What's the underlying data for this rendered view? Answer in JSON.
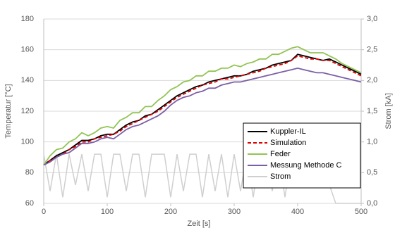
{
  "chart_data": {
    "type": "line",
    "x": [
      0,
      10,
      20,
      30,
      40,
      50,
      60,
      70,
      80,
      90,
      100,
      110,
      120,
      130,
      140,
      150,
      160,
      170,
      180,
      190,
      200,
      210,
      220,
      230,
      240,
      250,
      260,
      270,
      280,
      290,
      300,
      310,
      320,
      330,
      340,
      350,
      360,
      370,
      380,
      390,
      400,
      410,
      420,
      430,
      440,
      450,
      460,
      470,
      480,
      490,
      500
    ],
    "xlabel": "Zeit [s]",
    "ylabel": "Temperatur [°C]",
    "y2label": "Strom [kA]",
    "xlim": [
      0,
      500
    ],
    "xticks": [
      0,
      100,
      200,
      300,
      400,
      500
    ],
    "ylim": [
      60,
      180
    ],
    "yticks": [
      60,
      80,
      100,
      120,
      140,
      160,
      180
    ],
    "y2lim": [
      0,
      3
    ],
    "y2ticks": [
      {
        "value": 0,
        "label": "0,0"
      },
      {
        "value": 0.5,
        "label": "0,5"
      },
      {
        "value": 1,
        "label": "1,0"
      },
      {
        "value": 1.5,
        "label": "1,5"
      },
      {
        "value": 2,
        "label": "2,0"
      },
      {
        "value": 2.5,
        "label": "2,5"
      },
      {
        "value": 3,
        "label": "3,0"
      }
    ],
    "grid": true,
    "series": [
      {
        "name": "Kuppler-IL",
        "color": "#000000",
        "values": [
          85,
          88,
          91,
          93,
          95,
          98,
          101,
          101,
          102,
          104,
          105,
          105,
          108,
          111,
          113,
          114,
          117,
          118,
          121,
          124,
          127,
          130,
          132,
          134,
          136,
          137,
          139,
          140,
          141,
          142,
          143,
          143,
          144,
          146,
          147,
          148,
          150,
          151,
          152,
          153,
          157,
          156,
          155,
          154,
          153,
          154,
          152,
          150,
          148,
          146,
          144
        ]
      },
      {
        "name": "Simulation",
        "color": "#e00000",
        "dashed": true,
        "values": [
          85,
          88,
          90,
          92,
          95,
          97,
          100,
          100,
          102,
          103,
          104,
          105,
          107,
          110,
          112,
          114,
          116,
          118,
          120,
          123,
          126,
          129,
          131,
          133,
          135,
          137,
          138,
          139,
          141,
          141,
          142,
          143,
          144,
          145,
          146,
          148,
          149,
          150,
          151,
          153,
          156,
          155,
          154,
          154,
          153,
          153,
          151,
          149,
          147,
          145,
          143
        ]
      },
      {
        "name": "Feder",
        "color": "#92c454",
        "values": [
          85,
          91,
          95,
          96,
          100,
          102,
          106,
          104,
          106,
          109,
          110,
          109,
          114,
          116,
          119,
          119,
          123,
          123,
          127,
          130,
          134,
          136,
          139,
          140,
          143,
          143,
          146,
          146,
          148,
          148,
          150,
          149,
          151,
          152,
          154,
          154,
          157,
          157,
          159,
          161,
          162,
          160,
          158,
          158,
          158,
          156,
          154,
          151,
          149,
          147,
          145
        ]
      },
      {
        "name": "Messung Methode C",
        "color": "#7b5ea7",
        "values": [
          85,
          87,
          90,
          92,
          93,
          96,
          99,
          99,
          100,
          102,
          103,
          102,
          105,
          108,
          110,
          111,
          113,
          115,
          117,
          120,
          124,
          127,
          129,
          130,
          132,
          133,
          135,
          135,
          137,
          138,
          139,
          139,
          140,
          141,
          142,
          143,
          144,
          145,
          146,
          147,
          148,
          147,
          146,
          145,
          145,
          144,
          143,
          142,
          141,
          140,
          139
        ]
      },
      {
        "name": "Strom",
        "color": "#cfcfcf",
        "axis": "y2",
        "values": [
          0.8,
          0.2,
          0.8,
          0.1,
          0.8,
          0.3,
          0.8,
          0.2,
          0.8,
          0.8,
          0.1,
          0.8,
          0.8,
          0.2,
          0.8,
          0.8,
          0.1,
          0.8,
          0.8,
          0.8,
          0.1,
          0.8,
          0.2,
          0.8,
          0.8,
          0.1,
          0.8,
          0.2,
          0.8,
          0.1,
          0.8,
          0.2,
          0.8,
          0.1,
          0.8,
          0.8,
          0.2,
          0.8,
          0.1,
          0.8,
          0.6,
          0.5,
          0.6,
          0.5,
          0.8,
          0.3,
          0,
          0,
          0,
          0,
          0
        ]
      }
    ]
  }
}
